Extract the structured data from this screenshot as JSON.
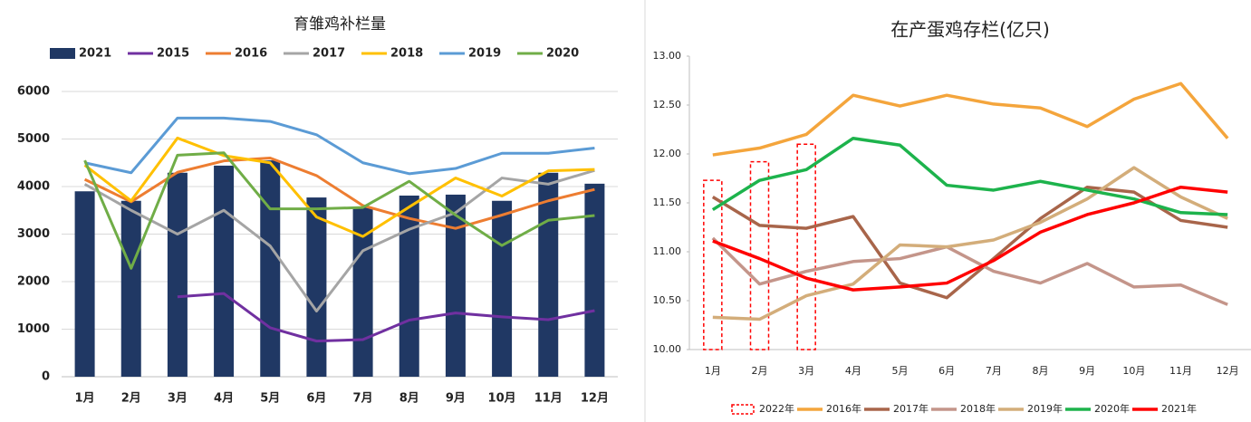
{
  "chart_data": [
    {
      "type": "combo",
      "title": "育雏鸡补栏量",
      "categories": [
        "1月",
        "2月",
        "3月",
        "4月",
        "5月",
        "6月",
        "7月",
        "8月",
        "9月",
        "10月",
        "11月",
        "12月"
      ],
      "ylim": [
        0,
        6000
      ],
      "yticks": [
        0,
        1000,
        2000,
        3000,
        4000,
        5000,
        6000
      ],
      "grid": true,
      "legend": "top",
      "series": [
        {
          "name": "2021",
          "type": "bar",
          "color": "#203864",
          "values": [
            3900,
            3700,
            4290,
            4440,
            4550,
            3770,
            3560,
            3810,
            3830,
            3700,
            4290,
            4060
          ]
        },
        {
          "name": "2015",
          "type": "line",
          "color": "#7030a0",
          "values": [
            null,
            null,
            1680,
            1750,
            1030,
            750,
            780,
            1190,
            1340,
            1260,
            1200,
            1390
          ]
        },
        {
          "name": "2016",
          "type": "line",
          "color": "#ed7d31",
          "values": [
            4150,
            3680,
            4300,
            4540,
            4600,
            4230,
            3600,
            3330,
            3120,
            3400,
            3700,
            3940
          ]
        },
        {
          "name": "2017",
          "type": "line",
          "color": "#a5a5a5",
          "values": [
            4050,
            3500,
            3000,
            3500,
            2750,
            1380,
            2650,
            3100,
            3450,
            4180,
            4050,
            4340
          ]
        },
        {
          "name": "2018",
          "type": "line",
          "color": "#ffc000",
          "values": [
            4450,
            3700,
            5020,
            4650,
            4500,
            3360,
            2950,
            3570,
            4180,
            3800,
            4330,
            4360
          ]
        },
        {
          "name": "2019",
          "type": "line",
          "color": "#5b9bd5",
          "values": [
            4500,
            4290,
            5440,
            5440,
            5370,
            5090,
            4500,
            4270,
            4380,
            4700,
            4700,
            4810
          ]
        },
        {
          "name": "2020",
          "type": "line",
          "color": "#70ad47",
          "values": [
            4550,
            2280,
            4660,
            4710,
            3530,
            3530,
            3560,
            4110,
            3400,
            2760,
            3290,
            3390
          ]
        }
      ]
    },
    {
      "type": "line",
      "title": "在产蛋鸡存栏(亿只)",
      "categories": [
        "1月",
        "2月",
        "3月",
        "4月",
        "5月",
        "6月",
        "7月",
        "8月",
        "9月",
        "10月",
        "11月",
        "12月"
      ],
      "ylim": [
        10,
        13
      ],
      "yticks": [
        {
          "value": 10,
          "label": "10.00"
        },
        {
          "value": 10.5,
          "label": "10.50"
        },
        {
          "value": 11,
          "label": "11.00"
        },
        {
          "value": 11.5,
          "label": "11.50"
        },
        {
          "value": 12,
          "label": "12.00"
        },
        {
          "value": 12.5,
          "label": "12.50"
        },
        {
          "value": 13,
          "label": "13.00"
        }
      ],
      "grid": false,
      "legend": "bottom",
      "series": [
        {
          "name": "2022年",
          "type": "bar",
          "style": "dashed",
          "color": "#ff0000",
          "values": [
            11.73,
            11.92,
            12.1,
            null,
            null,
            null,
            null,
            null,
            null,
            null,
            null,
            null
          ]
        },
        {
          "name": "2016年",
          "type": "line",
          "color": "#f4a53c",
          "values": [
            11.99,
            12.06,
            12.2,
            12.6,
            12.49,
            12.6,
            12.51,
            12.47,
            12.28,
            12.56,
            12.72,
            12.16
          ]
        },
        {
          "name": "2017年",
          "type": "line",
          "color": "#a8654a",
          "values": [
            11.56,
            11.27,
            11.24,
            11.36,
            10.68,
            10.53,
            10.93,
            11.34,
            11.66,
            11.61,
            11.32,
            11.25
          ]
        },
        {
          "name": "2018年",
          "type": "line",
          "color": "#c4958a",
          "values": [
            11.14,
            10.67,
            10.8,
            10.9,
            10.93,
            11.05,
            10.8,
            10.68,
            10.88,
            10.64,
            10.66,
            10.46
          ]
        },
        {
          "name": "2019年",
          "type": "line",
          "color": "#d3ad7a",
          "values": [
            10.33,
            10.31,
            10.55,
            10.67,
            11.07,
            11.05,
            11.12,
            11.3,
            11.54,
            11.86,
            11.56,
            11.34
          ]
        },
        {
          "name": "2020年",
          "type": "line",
          "color": "#1db34c",
          "values": [
            11.43,
            11.73,
            11.84,
            12.16,
            12.09,
            11.68,
            11.63,
            11.72,
            11.63,
            11.54,
            11.4,
            11.38
          ]
        },
        {
          "name": "2021年",
          "type": "line",
          "color": "#ff0000",
          "values": [
            11.11,
            10.93,
            10.73,
            10.61,
            10.64,
            10.68,
            10.91,
            11.2,
            11.38,
            11.5,
            11.66,
            11.61
          ]
        }
      ]
    }
  ]
}
